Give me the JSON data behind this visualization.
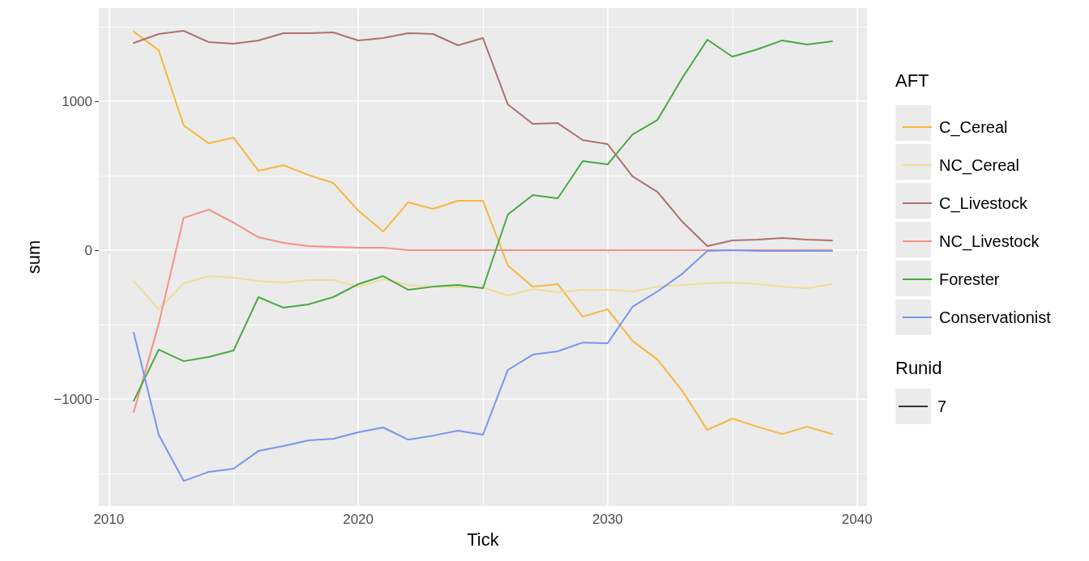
{
  "chart_data": {
    "type": "line",
    "xlabel": "Tick",
    "ylabel": "sum",
    "legend_title": "AFT",
    "x": [
      2011,
      2012,
      2013,
      2014,
      2015,
      2016,
      2017,
      2018,
      2019,
      2020,
      2021,
      2022,
      2023,
      2024,
      2025,
      2026,
      2027,
      2028,
      2029,
      2030,
      2031,
      2032,
      2033,
      2034,
      2035,
      2036,
      2037,
      2038,
      2039
    ],
    "series": [
      {
        "name": "C_Cereal",
        "color": "#f8b73c",
        "values": [
          1467,
          1342,
          837,
          717,
          755,
          533,
          571,
          505,
          451,
          266,
          125,
          321,
          277,
          332,
          332,
          -103,
          -245,
          -228,
          -446,
          -397,
          -609,
          -734,
          -946,
          -1207,
          -1130,
          -1185,
          -1234,
          -1185,
          -1234
        ]
      },
      {
        "name": "NC_Cereal",
        "color": "#f0de96",
        "values": [
          -207,
          -397,
          -223,
          -174,
          -185,
          -207,
          -217,
          -201,
          -201,
          -245,
          -196,
          -234,
          -245,
          -250,
          -250,
          -304,
          -261,
          -283,
          -266,
          -266,
          -277,
          -245,
          -234,
          -223,
          -217,
          -228,
          -245,
          -255,
          -228
        ]
      },
      {
        "name": "C_Livestock",
        "color": "#ab7370",
        "values": [
          1391,
          1451,
          1473,
          1397,
          1386,
          1408,
          1457,
          1457,
          1462,
          1408,
          1424,
          1457,
          1451,
          1375,
          1424,
          978,
          848,
          853,
          739,
          712,
          495,
          391,
          190,
          27,
          65,
          71,
          82,
          71,
          65
        ]
      },
      {
        "name": "NC_Livestock",
        "color": "#f88e87",
        "values": [
          -1087,
          -495,
          217,
          272,
          185,
          87,
          49,
          27,
          22,
          16,
          16,
          0,
          0,
          0,
          0,
          0,
          0,
          0,
          0,
          0,
          0,
          0,
          0,
          0,
          0,
          0,
          0,
          0,
          0
        ]
      },
      {
        "name": "Forester",
        "color": "#4aa845",
        "values": [
          -1011,
          -668,
          -745,
          -717,
          -674,
          -315,
          -386,
          -364,
          -315,
          -228,
          -174,
          -266,
          -245,
          -234,
          -255,
          239,
          370,
          348,
          598,
          576,
          777,
          875,
          1158,
          1413,
          1299,
          1348,
          1408,
          1380,
          1402
        ]
      },
      {
        "name": "Conservationist",
        "color": "#7895f0",
        "values": [
          -554,
          -1239,
          -1549,
          -1489,
          -1467,
          -1348,
          -1315,
          -1277,
          -1266,
          -1223,
          -1190,
          -1272,
          -1245,
          -1212,
          -1239,
          -804,
          -701,
          -679,
          -620,
          -625,
          -380,
          -277,
          -158,
          -5,
          0,
          -5,
          -5,
          -5,
          -5
        ]
      }
    ],
    "xlim": [
      2009.6,
      2040.4
    ],
    "xticks": [
      2010,
      2020,
      2030,
      2040
    ],
    "ylim": [
      -1717,
      1625
    ],
    "yticks": [
      -1000,
      0,
      1000
    ],
    "grid": true,
    "legend": "right",
    "marker": "none",
    "line_style": "solid",
    "annotations": [
      "Runid",
      "7"
    ]
  }
}
